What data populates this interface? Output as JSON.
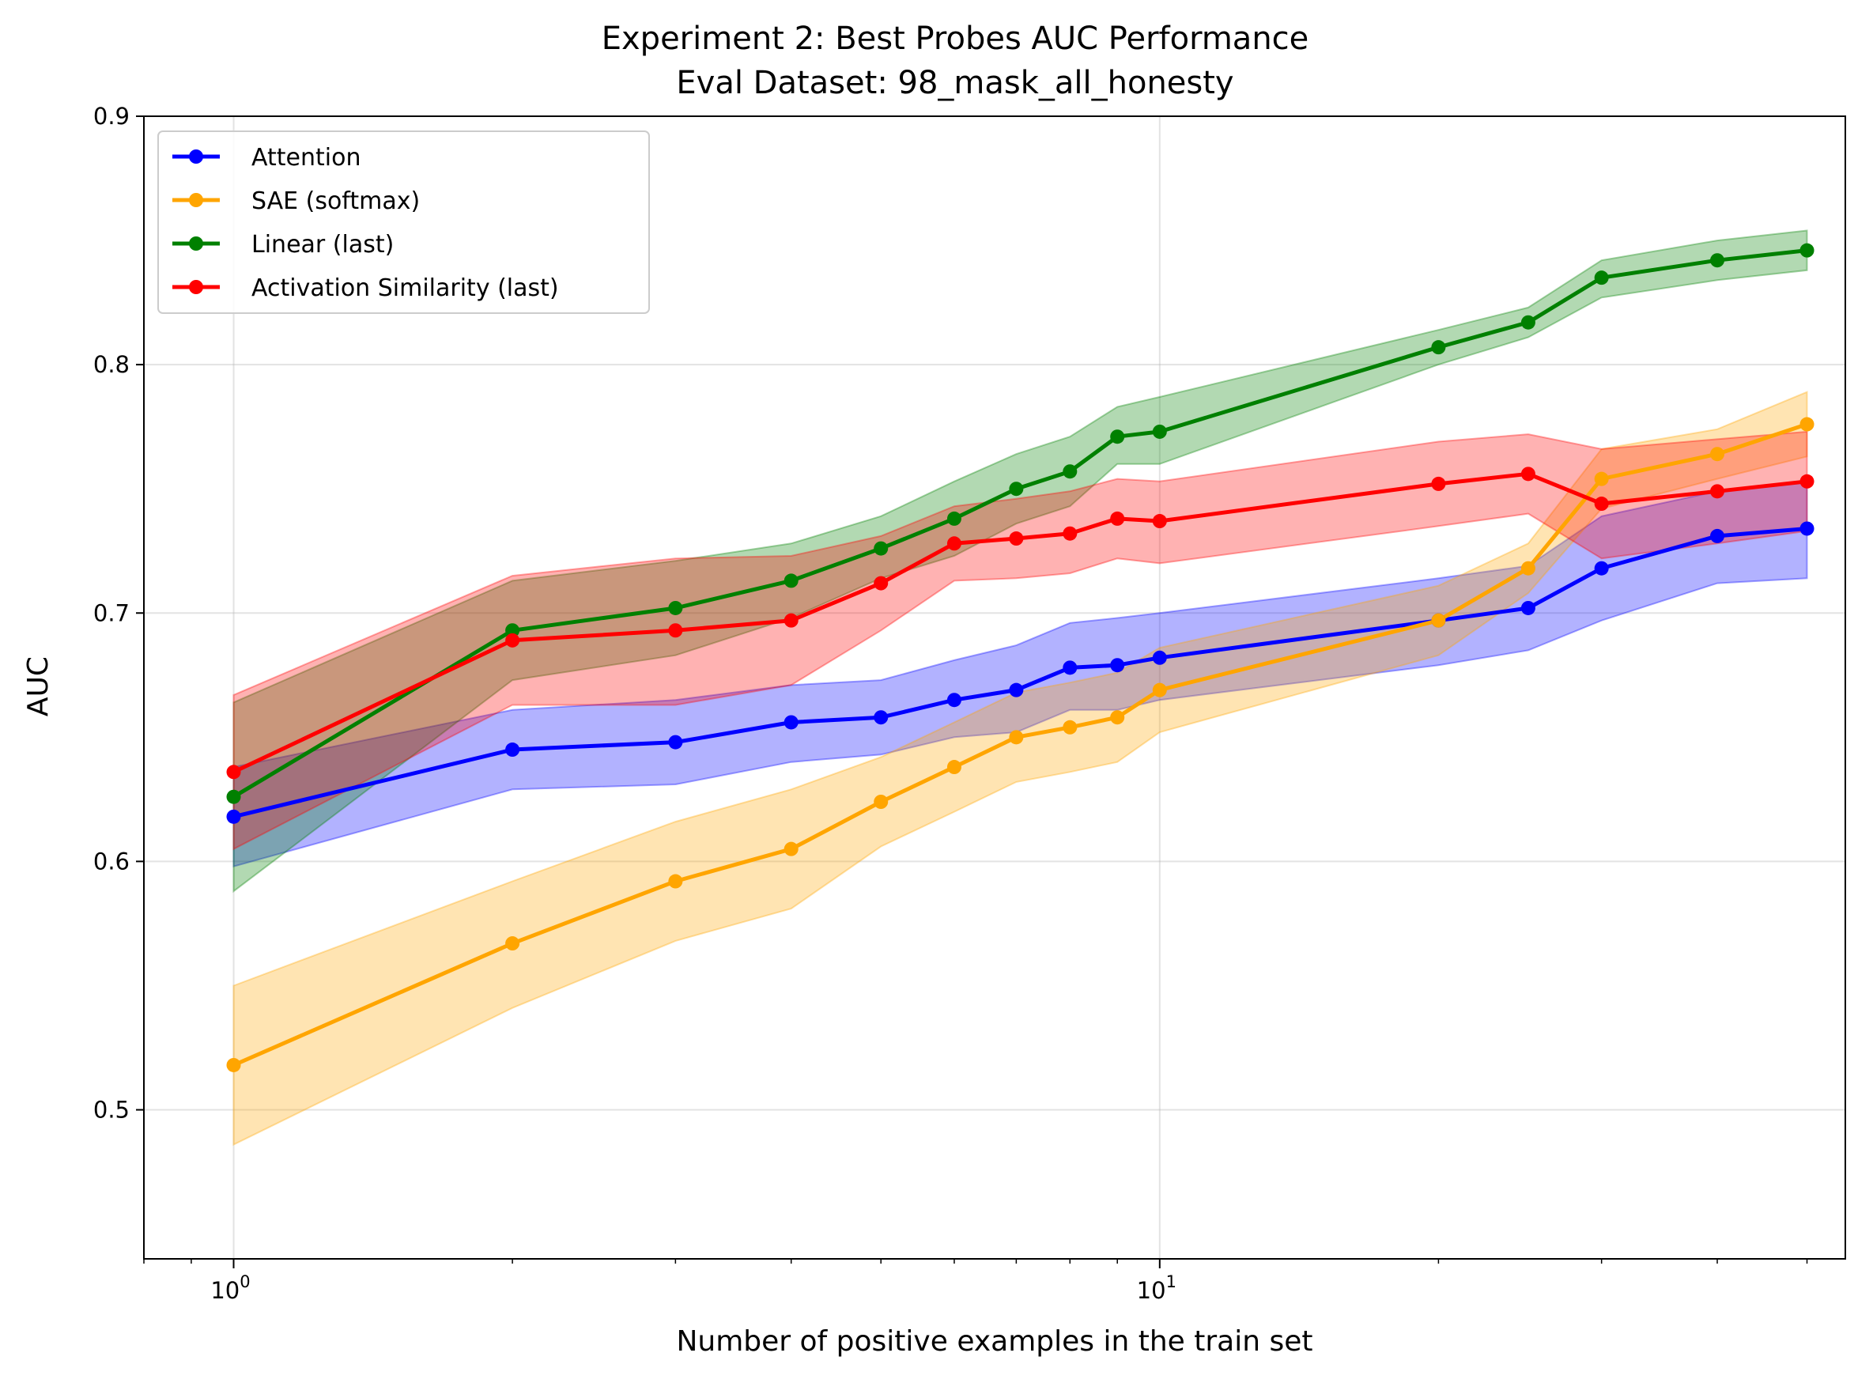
{
  "chart_data": {
    "type": "line",
    "title": "Experiment 2: Best Probes AUC Performance",
    "subtitle": "Eval Dataset: 98_mask_all_honesty",
    "xlabel": "Number of positive examples in the train set",
    "ylabel": "AUC",
    "xscale": "log",
    "xlim": [
      0.8,
      55
    ],
    "ylim": [
      0.44,
      0.9
    ],
    "grid": true,
    "legend_position": "upper-left",
    "y_ticks": [
      "0.5",
      "0.6",
      "0.7",
      "0.8",
      "0.9"
    ],
    "x_ticks": [
      {
        "base": "10",
        "exp": "0",
        "value": 1
      },
      {
        "base": "10",
        "exp": "1",
        "value": 10
      }
    ],
    "series": [
      {
        "name": "Attention",
        "color": "#0000ff",
        "x": [
          1,
          2,
          3,
          4,
          5,
          6,
          7,
          8,
          9,
          10,
          20,
          25,
          30,
          40,
          50
        ],
        "y": [
          0.618,
          0.645,
          0.648,
          0.656,
          0.658,
          0.665,
          0.669,
          0.678,
          0.679,
          0.682,
          0.697,
          0.702,
          0.718,
          0.731,
          0.734
        ],
        "lower": [
          0.598,
          0.629,
          0.631,
          0.64,
          0.643,
          0.65,
          0.652,
          0.661,
          0.661,
          0.665,
          0.679,
          0.685,
          0.697,
          0.712,
          0.714
        ],
        "upper": [
          0.638,
          0.661,
          0.665,
          0.671,
          0.673,
          0.681,
          0.687,
          0.696,
          0.698,
          0.7,
          0.714,
          0.719,
          0.739,
          0.749,
          0.753
        ]
      },
      {
        "name": "SAE (softmax)",
        "color": "#ffa500",
        "x": [
          1,
          2,
          3,
          4,
          5,
          6,
          7,
          8,
          9,
          10,
          20,
          25,
          30,
          40,
          50
        ],
        "y": [
          0.518,
          0.567,
          0.592,
          0.605,
          0.624,
          0.638,
          0.65,
          0.654,
          0.658,
          0.669,
          0.697,
          0.718,
          0.754,
          0.764,
          0.776
        ],
        "lower": [
          0.486,
          0.541,
          0.568,
          0.581,
          0.606,
          0.62,
          0.632,
          0.636,
          0.64,
          0.652,
          0.683,
          0.708,
          0.742,
          0.754,
          0.763
        ],
        "upper": [
          0.55,
          0.592,
          0.616,
          0.629,
          0.642,
          0.656,
          0.668,
          0.672,
          0.676,
          0.686,
          0.711,
          0.728,
          0.766,
          0.774,
          0.789
        ]
      },
      {
        "name": "Linear (last)",
        "color": "#008000",
        "x": [
          1,
          2,
          3,
          4,
          5,
          6,
          7,
          8,
          9,
          10,
          20,
          25,
          30,
          40,
          50
        ],
        "y": [
          0.626,
          0.693,
          0.702,
          0.713,
          0.726,
          0.738,
          0.75,
          0.757,
          0.771,
          0.773,
          0.807,
          0.817,
          0.835,
          0.842,
          0.846
        ],
        "lower": [
          0.588,
          0.673,
          0.683,
          0.698,
          0.714,
          0.723,
          0.736,
          0.743,
          0.76,
          0.76,
          0.8,
          0.811,
          0.827,
          0.834,
          0.838
        ],
        "upper": [
          0.664,
          0.713,
          0.721,
          0.728,
          0.739,
          0.753,
          0.764,
          0.771,
          0.783,
          0.787,
          0.814,
          0.823,
          0.842,
          0.85,
          0.854
        ]
      },
      {
        "name": "Activation Similarity (last)",
        "color": "#ff0000",
        "x": [
          1,
          2,
          3,
          4,
          5,
          6,
          7,
          8,
          9,
          10,
          20,
          25,
          30,
          40,
          50
        ],
        "y": [
          0.636,
          0.689,
          0.693,
          0.697,
          0.712,
          0.728,
          0.73,
          0.732,
          0.738,
          0.737,
          0.752,
          0.756,
          0.744,
          0.749,
          0.753
        ],
        "lower": [
          0.605,
          0.663,
          0.663,
          0.671,
          0.693,
          0.713,
          0.714,
          0.716,
          0.722,
          0.72,
          0.735,
          0.74,
          0.722,
          0.728,
          0.733
        ],
        "upper": [
          0.667,
          0.715,
          0.722,
          0.723,
          0.731,
          0.743,
          0.746,
          0.749,
          0.754,
          0.753,
          0.769,
          0.772,
          0.766,
          0.77,
          0.773
        ]
      }
    ]
  }
}
